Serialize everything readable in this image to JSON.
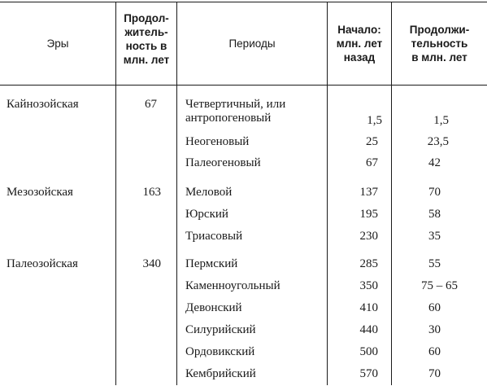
{
  "headers": {
    "era": "Эры",
    "era_duration": [
      "Продол-",
      "житель-",
      "ность в",
      "млн. лет"
    ],
    "period": "Периоды",
    "start": [
      "Начало:",
      "млн. лет",
      "назад"
    ],
    "period_duration": [
      "Продолжи-",
      "тельность",
      "в млн. лет"
    ]
  },
  "rows": [
    {
      "era": "Кайнозойская",
      "era_duration": "67",
      "period": [
        "Четвертичный, или",
        "антропогеновый"
      ],
      "start": "1,5",
      "duration": "1,5"
    },
    {
      "era": "",
      "era_duration": "",
      "period": [
        "Неогеновый"
      ],
      "start": "25",
      "duration": "23,5"
    },
    {
      "era": "",
      "era_duration": "",
      "period": [
        "Палеогеновый"
      ],
      "start": "67",
      "duration": "42"
    },
    {
      "era": "Мезозойская",
      "era_duration": "163",
      "period": [
        "Меловой"
      ],
      "start": "137",
      "duration": "70"
    },
    {
      "era": "",
      "era_duration": "",
      "period": [
        "Юрский"
      ],
      "start": "195",
      "duration": "58"
    },
    {
      "era": "",
      "era_duration": "",
      "period": [
        "Триасовый"
      ],
      "start": "230",
      "duration": "35"
    },
    {
      "era": "Палеозойская",
      "era_duration": "340",
      "period": [
        "Пермский"
      ],
      "start": "285",
      "duration": "55"
    },
    {
      "era": "",
      "era_duration": "",
      "period": [
        "Каменноугольный"
      ],
      "start": "350",
      "duration": "75 – 65"
    },
    {
      "era": "",
      "era_duration": "",
      "period": [
        "Девонский"
      ],
      "start": "410",
      "duration": "60"
    },
    {
      "era": "",
      "era_duration": "",
      "period": [
        "Силурийский"
      ],
      "start": "440",
      "duration": "30"
    },
    {
      "era": "",
      "era_duration": "",
      "period": [
        "Ордовикский"
      ],
      "start": "500",
      "duration": "60"
    },
    {
      "era": "",
      "era_duration": "",
      "period": [
        "Кембрийский"
      ],
      "start": "570",
      "duration": "70"
    }
  ]
}
